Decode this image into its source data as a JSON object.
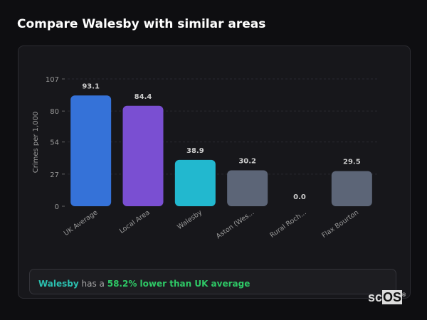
{
  "title": "Compare Walesby with similar areas",
  "chart_data": {
    "type": "bar",
    "ylabel": "Crimes per 1,000",
    "ylim": [
      0,
      107
    ],
    "yticks": [
      0,
      27,
      54,
      80,
      107
    ],
    "grid": true,
    "categories": [
      "UK Average",
      "Local Area",
      "Walesby",
      "Aston (Wes...",
      "Rural Roch...",
      "Flax Bourton"
    ],
    "values": [
      93.1,
      84.4,
      38.9,
      30.2,
      0.0,
      29.5
    ],
    "data_labels": [
      "93.1",
      "84.4",
      "38.9",
      "30.2",
      "0.0",
      "29.5"
    ],
    "colors": [
      "#3572d8",
      "#7a4fd2",
      "#22b8cf",
      "#5c6577",
      "#5c6577",
      "#5c6577"
    ]
  },
  "summary": {
    "area": "Walesby",
    "middle": " has a ",
    "comparison": "58.2% lower than UK average"
  },
  "logo": {
    "text_a": "sc",
    "text_b": "OS",
    "mark": "®"
  }
}
